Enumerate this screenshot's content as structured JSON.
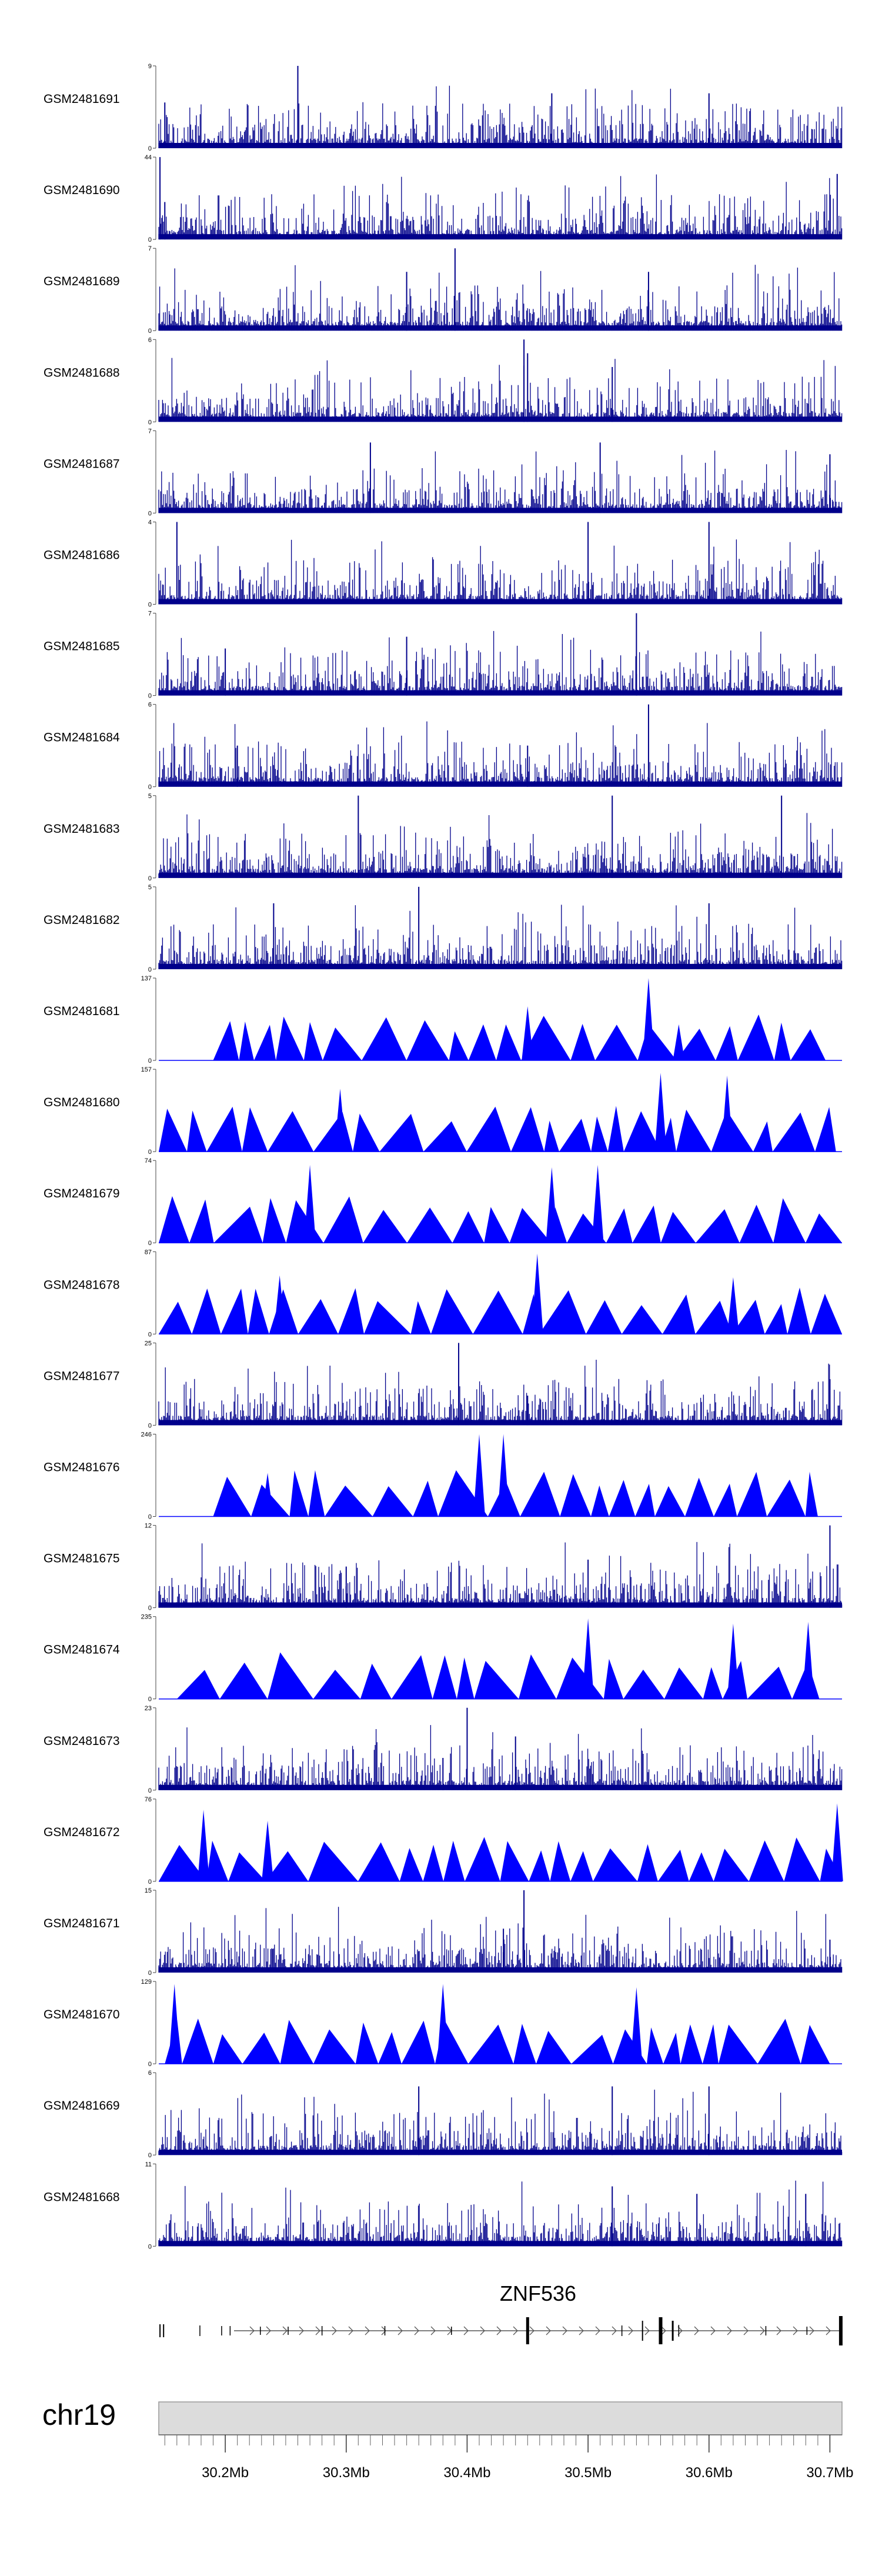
{
  "chart_data": {
    "type": "area",
    "chromosome": "chr19",
    "gene": "ZNF536",
    "xlim_mb": [
      30.145,
      30.71
    ],
    "x_ticks_mb": [
      30.2,
      30.3,
      30.4,
      30.5,
      30.6,
      30.7
    ],
    "x_tick_labels": [
      "30.2Mb",
      "30.3Mb",
      "30.4Mb",
      "30.5Mb",
      "30.6Mb",
      "30.7Mb"
    ],
    "tracks": [
      {
        "name": "GSM2481691",
        "ymax": 9,
        "ymin": 0,
        "style": "dense",
        "color": "#00008b",
        "peaks": [
          [
            30.26,
            9
          ],
          [
            30.47,
            6
          ],
          [
            30.6,
            6
          ],
          [
            30.15,
            5
          ]
        ]
      },
      {
        "name": "GSM2481690",
        "ymax": 44,
        "ymin": 0,
        "style": "dense",
        "color": "#00008b",
        "peaks": [
          [
            30.146,
            44
          ],
          [
            30.706,
            35
          ],
          [
            30.15,
            20
          ]
        ]
      },
      {
        "name": "GSM2481689",
        "ymax": 7,
        "ymin": 0,
        "style": "dense",
        "color": "#00008b",
        "peaks": [
          [
            30.39,
            7
          ],
          [
            30.35,
            5
          ],
          [
            30.55,
            5
          ]
        ]
      },
      {
        "name": "GSM2481688",
        "ymax": 6,
        "ymin": 0,
        "style": "dense",
        "color": "#00008b",
        "peaks": [
          [
            30.447,
            6
          ],
          [
            30.45,
            5
          ],
          [
            30.52,
            4
          ]
        ]
      },
      {
        "name": "GSM2481687",
        "ymax": 7,
        "ymin": 0,
        "style": "dense",
        "color": "#00008b",
        "peaks": [
          [
            30.32,
            6
          ],
          [
            30.51,
            6
          ],
          [
            30.7,
            5
          ]
        ]
      },
      {
        "name": "GSM2481686",
        "ymax": 4,
        "ymin": 0,
        "style": "dense",
        "color": "#00008b",
        "peaks": [
          [
            30.16,
            4
          ],
          [
            30.5,
            4
          ],
          [
            30.6,
            4
          ]
        ]
      },
      {
        "name": "GSM2481685",
        "ymax": 7,
        "ymin": 0,
        "style": "dense",
        "color": "#00008b",
        "peaks": [
          [
            30.54,
            7
          ],
          [
            30.35,
            5
          ],
          [
            30.2,
            4
          ]
        ]
      },
      {
        "name": "GSM2481684",
        "ymax": 6,
        "ymin": 0,
        "style": "dense",
        "color": "#00008b",
        "peaks": [
          [
            30.55,
            6
          ],
          [
            30.21,
            3
          ],
          [
            30.45,
            3
          ]
        ]
      },
      {
        "name": "GSM2481683",
        "ymax": 5,
        "ymin": 0,
        "style": "dense",
        "color": "#00008b",
        "peaks": [
          [
            30.31,
            5
          ],
          [
            30.52,
            5
          ],
          [
            30.66,
            5
          ]
        ]
      },
      {
        "name": "GSM2481682",
        "ymax": 5,
        "ymin": 0,
        "style": "dense",
        "color": "#00008b",
        "peaks": [
          [
            30.36,
            5
          ],
          [
            30.24,
            4
          ],
          [
            30.6,
            4
          ]
        ]
      },
      {
        "name": "GSM2481681",
        "ymax": 137,
        "ymin": 0,
        "style": "triangles",
        "color": "#0000ff",
        "range": [
          30.19,
          30.705
        ],
        "peaks": [
          [
            30.55,
            137
          ],
          [
            30.45,
            90
          ],
          [
            30.575,
            60
          ]
        ]
      },
      {
        "name": "GSM2481680",
        "ymax": 157,
        "ymin": 0,
        "style": "triangles",
        "color": "#0000ff",
        "range": [
          30.145,
          30.705
        ],
        "peaks": [
          [
            30.295,
            120
          ],
          [
            30.56,
            150
          ],
          [
            30.615,
            145
          ]
        ]
      },
      {
        "name": "GSM2481679",
        "ymax": 74,
        "ymin": 0,
        "style": "triangles",
        "color": "#0000ff",
        "range": [
          30.145,
          30.71
        ],
        "peaks": [
          [
            30.27,
            70
          ],
          [
            30.508,
            70
          ],
          [
            30.47,
            68
          ]
        ]
      },
      {
        "name": "GSM2481678",
        "ymax": 87,
        "ymin": 0,
        "style": "triangles",
        "color": "#0000ff",
        "range": [
          30.145,
          30.71
        ],
        "peaks": [
          [
            30.245,
            62
          ],
          [
            30.458,
            85
          ],
          [
            30.62,
            60
          ]
        ]
      },
      {
        "name": "GSM2481677",
        "ymax": 25,
        "ymin": 0,
        "style": "dense",
        "color": "#00008b",
        "peaks": [
          [
            30.393,
            25
          ],
          [
            30.7,
            14
          ],
          [
            30.45,
            9
          ]
        ]
      },
      {
        "name": "GSM2481676",
        "ymax": 246,
        "ymin": 0,
        "style": "triangles",
        "color": "#0000ff",
        "range": [
          30.19,
          30.69
        ],
        "peaks": [
          [
            30.41,
            246
          ],
          [
            30.43,
            246
          ],
          [
            30.235,
            130
          ]
        ]
      },
      {
        "name": "GSM2481675",
        "ymax": 12,
        "ymin": 0,
        "style": "dense",
        "color": "#00008b",
        "peaks": [
          [
            30.7,
            12
          ],
          [
            30.5,
            7
          ],
          [
            30.3,
            6
          ]
        ]
      },
      {
        "name": "GSM2481674",
        "ymax": 235,
        "ymin": 0,
        "style": "triangles",
        "color": "#0000ff",
        "range": [
          30.16,
          30.695
        ],
        "peaks": [
          [
            30.5,
            230
          ],
          [
            30.682,
            220
          ],
          [
            30.62,
            215
          ]
        ]
      },
      {
        "name": "GSM2481673",
        "ymax": 23,
        "ymin": 0,
        "style": "dense",
        "color": "#00008b",
        "peaks": [
          [
            30.4,
            23
          ],
          [
            30.44,
            15
          ],
          [
            30.38,
            9
          ]
        ]
      },
      {
        "name": "GSM2481672",
        "ymax": 76,
        "ymin": 0,
        "style": "triangles",
        "color": "#0000ff",
        "range": [
          30.145,
          30.71
        ],
        "peaks": [
          [
            30.182,
            66
          ],
          [
            30.706,
            72
          ],
          [
            30.235,
            56
          ]
        ]
      },
      {
        "name": "GSM2481671",
        "ymax": 15,
        "ymin": 0,
        "style": "dense",
        "color": "#00008b",
        "peaks": [
          [
            30.447,
            15
          ],
          [
            30.43,
            8
          ],
          [
            30.7,
            6
          ]
        ]
      },
      {
        "name": "GSM2481670",
        "ymax": 129,
        "ymin": 0,
        "style": "triangles",
        "color": "#0000ff",
        "range": [
          30.15,
          30.7
        ],
        "peaks": [
          [
            30.158,
            125
          ],
          [
            30.38,
            125
          ],
          [
            30.54,
            120
          ]
        ]
      },
      {
        "name": "GSM2481669",
        "ymax": 6,
        "ymin": 0,
        "style": "dense",
        "color": "#00008b",
        "peaks": [
          [
            30.36,
            5
          ],
          [
            30.52,
            5
          ],
          [
            30.6,
            5
          ]
        ]
      },
      {
        "name": "GSM2481668",
        "ymax": 11,
        "ymin": 0,
        "style": "dense",
        "color": "#00008b",
        "peaks": [
          [
            30.52,
            8
          ],
          [
            30.59,
            7
          ],
          [
            30.68,
            7
          ]
        ]
      }
    ]
  }
}
